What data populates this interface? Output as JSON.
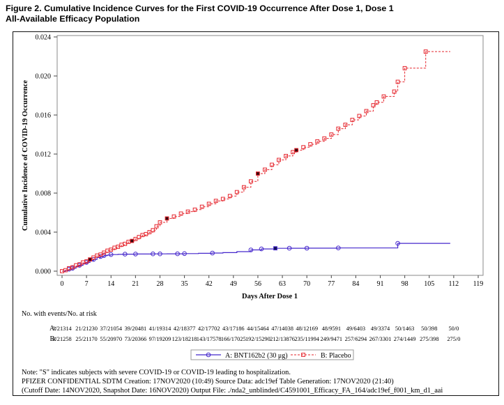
{
  "title": {
    "line1": "Figure 2. Cumulative Incidence Curves for the First COVID-19 Occurrence After Dose 1, Dose 1",
    "line2": "All-Available Efficacy Population"
  },
  "chart_data": {
    "type": "line",
    "subtype": "kaplan-meier-cumulative-incidence-step",
    "title": "",
    "xlabel": "Days After Dose 1",
    "ylabel": "Cumulative Incidence of COVID-19 Occurrence",
    "xlim": [
      0,
      119
    ],
    "ylim": [
      0,
      0.024
    ],
    "xticks": [
      0,
      7,
      14,
      21,
      28,
      35,
      42,
      49,
      56,
      63,
      70,
      77,
      84,
      91,
      98,
      105,
      112,
      119
    ],
    "ytick_labels": [
      "0.000",
      "0.004",
      "0.008",
      "0.012",
      "0.016",
      "0.020",
      "0.024"
    ],
    "grid": false,
    "legend_position": "bottom-center",
    "series": [
      {
        "name": "A: BNT162b2 (30 μg)",
        "color": "#4527cc",
        "line": "solid",
        "marker": "circle",
        "severe_fill": "#141452",
        "points": [
          [
            0,
            0
          ],
          [
            1,
            0.0001
          ],
          [
            2,
            0.0002
          ],
          [
            3,
            0.0003
          ],
          [
            4,
            0.0005
          ],
          [
            5,
            0.0006
          ],
          [
            6,
            0.0008
          ],
          [
            7,
            0.0009
          ],
          [
            8,
            0.0011
          ],
          [
            9,
            0.0012
          ],
          [
            10,
            0.0014
          ],
          [
            11,
            0.0015
          ],
          [
            12,
            0.0016
          ],
          [
            13,
            0.00165
          ],
          [
            14,
            0.0017
          ],
          [
            16,
            0.00172
          ],
          [
            18,
            0.00174
          ],
          [
            21,
            0.00176
          ],
          [
            26,
            0.00177
          ],
          [
            30,
            0.00178
          ],
          [
            35,
            0.0018
          ],
          [
            39,
            0.00183
          ],
          [
            43,
            0.00186
          ],
          [
            46,
            0.0019
          ],
          [
            50,
            0.002
          ],
          [
            54,
            0.00218
          ],
          [
            57,
            0.00228
          ],
          [
            61,
            0.00234
          ],
          [
            65,
            0.00235
          ],
          [
            70,
            0.00236
          ],
          [
            79,
            0.00238
          ],
          [
            96,
            0.00285
          ],
          [
            111,
            0.00285
          ]
        ],
        "marker_days": [
          2,
          3,
          5,
          7,
          9,
          11,
          12,
          14,
          18,
          21,
          26,
          28,
          33,
          35,
          43,
          54,
          57,
          65,
          70,
          79,
          96
        ],
        "severe_days": [
          61
        ]
      },
      {
        "name": "B: Placebo",
        "color": "#e5232b",
        "line": "dashed",
        "marker": "square",
        "severe_fill": "#3a0a10",
        "points": [
          [
            0,
            0
          ],
          [
            1,
            0.0001
          ],
          [
            2,
            0.0003
          ],
          [
            3,
            0.0004
          ],
          [
            4,
            0.0006
          ],
          [
            5,
            0.0007
          ],
          [
            6,
            0.0009
          ],
          [
            7,
            0.001
          ],
          [
            8,
            0.0012
          ],
          [
            9,
            0.0014
          ],
          [
            10,
            0.0016
          ],
          [
            11,
            0.0017
          ],
          [
            12,
            0.0019
          ],
          [
            13,
            0.0021
          ],
          [
            14,
            0.0022
          ],
          [
            15,
            0.0024
          ],
          [
            16,
            0.0025
          ],
          [
            17,
            0.0027
          ],
          [
            18,
            0.0028
          ],
          [
            19,
            0.003
          ],
          [
            20,
            0.0031
          ],
          [
            21,
            0.0033
          ],
          [
            22,
            0.0035
          ],
          [
            23,
            0.0037
          ],
          [
            24,
            0.0038
          ],
          [
            25,
            0.004
          ],
          [
            26,
            0.0042
          ],
          [
            27,
            0.0046
          ],
          [
            28,
            0.005
          ],
          [
            30,
            0.0054
          ],
          [
            32,
            0.0056
          ],
          [
            34,
            0.0059
          ],
          [
            36,
            0.0061
          ],
          [
            38,
            0.0063
          ],
          [
            40,
            0.0066
          ],
          [
            42,
            0.0069
          ],
          [
            44,
            0.0072
          ],
          [
            46,
            0.0074
          ],
          [
            48,
            0.0077
          ],
          [
            50,
            0.0081
          ],
          [
            52,
            0.0086
          ],
          [
            54,
            0.0092
          ],
          [
            56,
            0.01
          ],
          [
            58,
            0.0104
          ],
          [
            60,
            0.0109
          ],
          [
            62,
            0.0114
          ],
          [
            64,
            0.0118
          ],
          [
            66,
            0.0122
          ],
          [
            67,
            0.0124
          ],
          [
            69,
            0.0127
          ],
          [
            71,
            0.013
          ],
          [
            73,
            0.0133
          ],
          [
            75,
            0.0136
          ],
          [
            77,
            0.014
          ],
          [
            79,
            0.0146
          ],
          [
            81,
            0.015
          ],
          [
            83,
            0.0155
          ],
          [
            85,
            0.0159
          ],
          [
            87,
            0.0164
          ],
          [
            89,
            0.017
          ],
          [
            90,
            0.0173
          ],
          [
            92,
            0.0179
          ],
          [
            95,
            0.0184
          ],
          [
            96,
            0.0194
          ],
          [
            98,
            0.0208
          ],
          [
            104,
            0.0225
          ],
          [
            111,
            0.0225
          ]
        ],
        "marker_days": "all-points",
        "severe_days": [
          8,
          20,
          30,
          56,
          67
        ]
      }
    ]
  },
  "risk_table": {
    "label": "No. with events/No. at risk",
    "days": [
      0,
      7,
      14,
      21,
      28,
      35,
      42,
      49,
      56,
      63,
      70,
      77,
      84,
      91,
      98,
      105,
      112
    ],
    "rows": [
      {
        "label": "A:",
        "values": [
          "0/21314",
          "21/21230",
          "37/21054",
          "39/20481",
          "41/19314",
          "42/18377",
          "42/17702",
          "43/17186",
          "44/15464",
          "47/14038",
          "48/12169",
          "48/9591",
          "49/6403",
          "49/3374",
          "50/1463",
          "50/398",
          "50/0"
        ]
      },
      {
        "label": "B:",
        "values": [
          "0/21258",
          "25/21170",
          "55/20970",
          "73/20366",
          "97/19209",
          "123/18218",
          "143/17578",
          "166/17025",
          "192/15290",
          "212/13876",
          "235/11994",
          "249/9471",
          "257/6294",
          "267/3301",
          "274/1449",
          "275/398",
          "275/0"
        ]
      }
    ]
  },
  "legend": {
    "items": [
      {
        "label": "A: BNT162b2 (30 μg)",
        "series": 0
      },
      {
        "label": "B: Placebo",
        "series": 1
      }
    ]
  },
  "footer": {
    "note": "Note: \"S\" indicates subjects with severe COVID-19 or COVID-19 leading to hospitalization.",
    "line2": "PFIZER CONFIDENTIAL  SDTM Creation: 17NOV2020 (10:49)  Source Data: adc19ef  Table Generation: 17NOV2020 (21:40)",
    "line3": "(Cutoff Date: 14NOV2020, Snapshot Date: 16NOV2020) Output File: ./nda2_unblinded/C4591001_Efficacy_FA_164/adc19ef_f001_km_d1_aai"
  }
}
